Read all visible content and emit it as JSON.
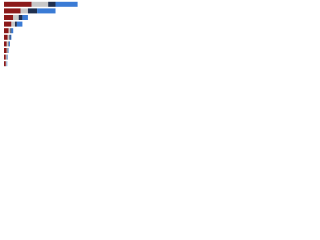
{
  "chart_data": {
    "type": "stacked-bar-horizontal",
    "categories": [
      null,
      null,
      null,
      null,
      null,
      null,
      null,
      null,
      null,
      null
    ],
    "series": [
      {
        "color": "#8b1a1a",
        "values": [
          30,
          18,
          10,
          8,
          5,
          4,
          3,
          3,
          2,
          2
        ]
      },
      {
        "color": "#c8c8c8",
        "values": [
          18,
          8,
          6,
          4,
          2,
          2,
          2,
          1,
          1,
          1
        ]
      },
      {
        "color": "#1f2f4f",
        "values": [
          8,
          10,
          4,
          2,
          1,
          1,
          0.5,
          0.5,
          0.5,
          0
        ]
      },
      {
        "color": "#3a7bd5",
        "values": [
          24,
          20,
          6,
          6,
          2,
          1,
          1,
          0.5,
          0.5,
          0.5
        ]
      }
    ],
    "xlim": [
      0,
      100
    ]
  }
}
